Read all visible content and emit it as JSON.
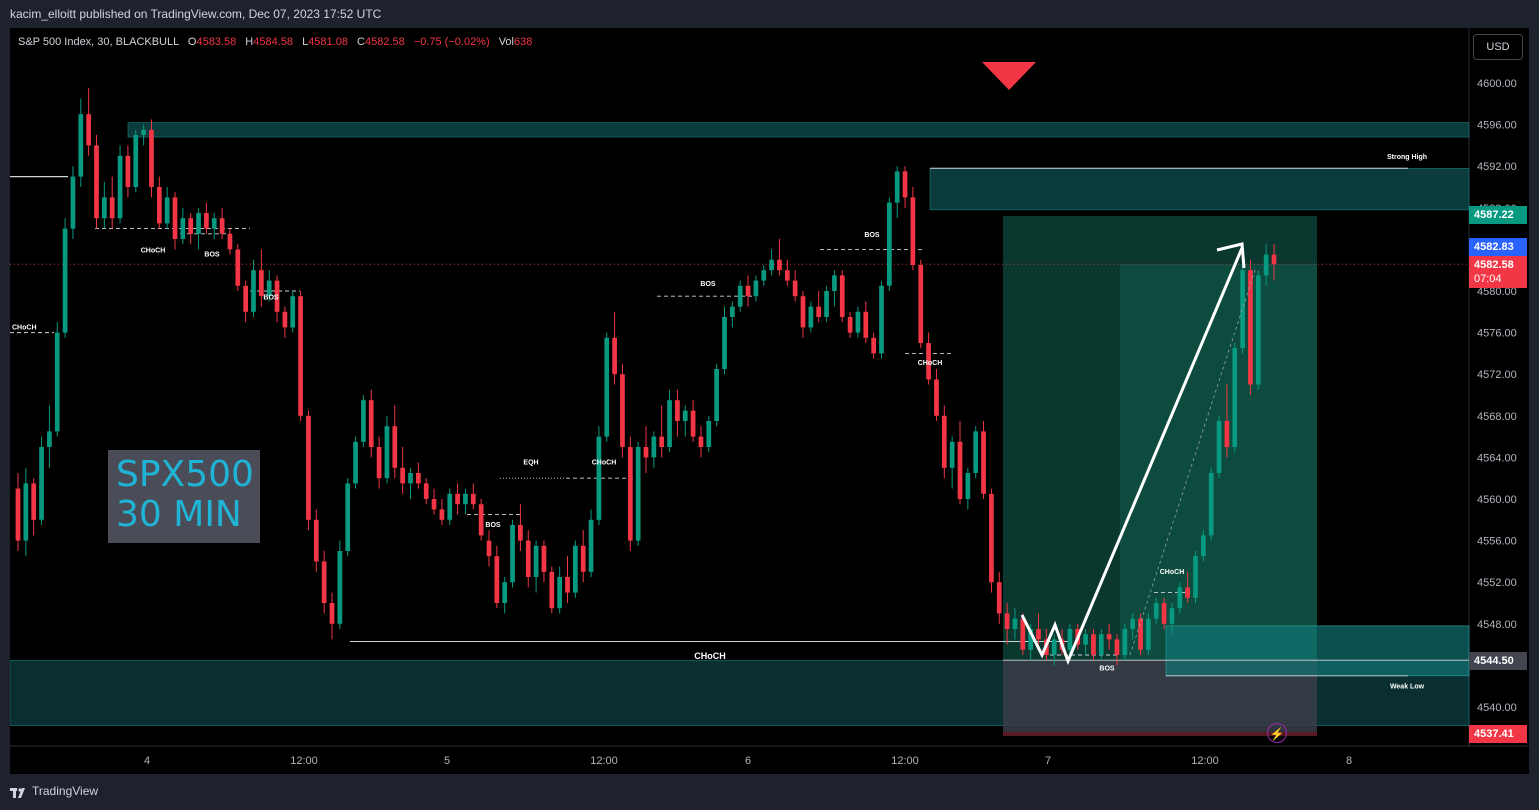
{
  "publisher_line": "kacim_elloitt published on TradingView.com, Dec 07, 2023 17:52 UTC",
  "legend": {
    "symbol": "S&P 500 Index, 30, BLACKBULL",
    "o_label": "O",
    "o_value": "4583.58",
    "h_label": "H",
    "h_value": "4584.58",
    "l_label": "L",
    "l_value": "4581.08",
    "c_label": "C",
    "c_value": "4582.58",
    "change": "−0.75 (−0.02%)",
    "vol_label": "Vol",
    "vol_value": "638"
  },
  "currency_button": "USD",
  "watermark": {
    "line1": "SPX500",
    "line2": "30 MIN"
  },
  "price_axis": {
    "ticks": [
      "4600.00",
      "4596.00",
      "4592.00",
      "4588.00",
      "4584.00",
      "4580.00",
      "4576.00",
      "4572.00",
      "4568.00",
      "4564.00",
      "4560.00",
      "4556.00",
      "4552.00",
      "4548.00",
      "4544.00",
      "4540.00"
    ],
    "range": [
      4536,
      4601
    ]
  },
  "price_badges": {
    "target": "4587.22",
    "high_marker": "4582.83",
    "last": "4582.58",
    "countdown": "07:04",
    "entry": "4544.50",
    "stop": "4537.41"
  },
  "time_axis": [
    "4",
    "12:00",
    "5",
    "12:00",
    "6",
    "12:00",
    "7",
    "12:00",
    "8"
  ],
  "annotations": {
    "choch": "CHoCH",
    "bos": "BOS",
    "eqh": "EQH",
    "strong_high": "Strong High",
    "weak_low": "Weak Low"
  },
  "footer_brand": "TradingView",
  "colors": {
    "up": "#089981",
    "down": "#f23645",
    "zone": "#0f4f52",
    "target_badge": "#089981",
    "high_badge": "#2962ff",
    "last_badge": "#f23645"
  },
  "chart_data": {
    "type": "candlestick",
    "symbol": "S&P 500 Index",
    "interval": "30",
    "ylim": [
      4536,
      4601
    ],
    "last_price": 4582.58,
    "zones": [
      {
        "label": "",
        "from": 4594.8,
        "to": 4596.2
      },
      {
        "label": "Strong High",
        "from": 4587.8,
        "to": 4591.8
      },
      {
        "label": "",
        "from": 4538.2,
        "to": 4544.5
      },
      {
        "label": "Weak Low",
        "from": 4543.0,
        "to": 4547.8
      }
    ],
    "position": {
      "side": "long",
      "entry": 4544.5,
      "target": 4587.22,
      "stop": 4537.41
    },
    "candles": [
      [
        4561.0,
        4562.5,
        4555.0,
        4556.0
      ],
      [
        4556.0,
        4563.0,
        4554.5,
        4561.5
      ],
      [
        4561.5,
        4562.0,
        4556.5,
        4558.0
      ],
      [
        4558.0,
        4566.0,
        4557.5,
        4565.0
      ],
      [
        4565.0,
        4569.0,
        4563.0,
        4566.5
      ],
      [
        4566.5,
        4577.0,
        4566.0,
        4576.0
      ],
      [
        4576.0,
        4587.0,
        4575.5,
        4586.0
      ],
      [
        4586.0,
        4592.0,
        4585.0,
        4591.0
      ],
      [
        4591.0,
        4598.5,
        4590.0,
        4597.0
      ],
      [
        4597.0,
        4599.5,
        4593.0,
        4594.0
      ],
      [
        4594.0,
        4595.0,
        4586.0,
        4587.0
      ],
      [
        4587.0,
        4590.5,
        4586.0,
        4589.0
      ],
      [
        4589.0,
        4591.0,
        4586.0,
        4587.0
      ],
      [
        4587.0,
        4594.0,
        4586.5,
        4593.0
      ],
      [
        4593.0,
        4594.0,
        4589.0,
        4590.0
      ],
      [
        4590.0,
        4595.5,
        4589.5,
        4595.0
      ],
      [
        4595.0,
        4596.0,
        4594.0,
        4595.5
      ],
      [
        4595.5,
        4596.5,
        4589.0,
        4590.0
      ],
      [
        4590.0,
        4591.0,
        4586.0,
        4586.5
      ],
      [
        4586.5,
        4590.0,
        4586.0,
        4589.0
      ],
      [
        4589.0,
        4589.5,
        4584.0,
        4585.0
      ],
      [
        4585.0,
        4588.0,
        4584.5,
        4587.0
      ],
      [
        4587.0,
        4587.5,
        4584.5,
        4585.5
      ],
      [
        4585.5,
        4588.0,
        4584.0,
        4587.5
      ],
      [
        4587.5,
        4588.5,
        4585.5,
        4586.0
      ],
      [
        4586.0,
        4587.5,
        4585.0,
        4587.0
      ],
      [
        4587.0,
        4588.0,
        4585.0,
        4585.5
      ],
      [
        4585.5,
        4586.0,
        4583.5,
        4584.0
      ],
      [
        4584.0,
        4584.5,
        4580.0,
        4580.5
      ],
      [
        4580.5,
        4581.0,
        4577.0,
        4578.0
      ],
      [
        4578.0,
        4583.0,
        4577.5,
        4582.0
      ],
      [
        4582.0,
        4584.0,
        4578.5,
        4579.5
      ],
      [
        4579.5,
        4582.0,
        4579.0,
        4581.0
      ],
      [
        4581.0,
        4581.5,
        4577.0,
        4578.0
      ],
      [
        4578.0,
        4578.5,
        4575.5,
        4576.5
      ],
      [
        4576.5,
        4580.0,
        4576.0,
        4579.5
      ],
      [
        4579.5,
        4580.0,
        4567.5,
        4568.0
      ],
      [
        4568.0,
        4568.5,
        4557.0,
        4558.0
      ],
      [
        4558.0,
        4559.0,
        4553.0,
        4554.0
      ],
      [
        4554.0,
        4555.0,
        4549.0,
        4550.0
      ],
      [
        4550.0,
        4551.0,
        4546.5,
        4548.0
      ],
      [
        4548.0,
        4556.0,
        4547.5,
        4555.0
      ],
      [
        4555.0,
        4562.0,
        4554.5,
        4561.5
      ],
      [
        4561.5,
        4566.0,
        4561.0,
        4565.5
      ],
      [
        4565.5,
        4570.0,
        4565.0,
        4569.5
      ],
      [
        4569.5,
        4570.5,
        4564.0,
        4565.0
      ],
      [
        4565.0,
        4566.0,
        4561.0,
        4562.0
      ],
      [
        4562.0,
        4568.0,
        4561.5,
        4567.0
      ],
      [
        4567.0,
        4569.0,
        4562.0,
        4563.0
      ],
      [
        4563.0,
        4565.0,
        4560.5,
        4561.5
      ],
      [
        4561.5,
        4563.0,
        4560.0,
        4562.5
      ],
      [
        4562.5,
        4563.5,
        4561.0,
        4561.5
      ],
      [
        4561.5,
        4562.0,
        4559.5,
        4560.0
      ],
      [
        4560.0,
        4561.0,
        4558.5,
        4559.0
      ],
      [
        4559.0,
        4560.0,
        4557.5,
        4558.0
      ],
      [
        4558.0,
        4561.0,
        4557.5,
        4560.5
      ],
      [
        4560.5,
        4561.5,
        4558.5,
        4559.5
      ],
      [
        4559.5,
        4561.0,
        4558.5,
        4560.5
      ],
      [
        4560.5,
        4561.5,
        4559.0,
        4559.5
      ],
      [
        4559.5,
        4560.0,
        4556.0,
        4556.5
      ],
      [
        4556.0,
        4557.0,
        4553.5,
        4554.5
      ],
      [
        4554.5,
        4555.5,
        4549.5,
        4550.0
      ],
      [
        4550.0,
        4552.5,
        4549.0,
        4552.0
      ],
      [
        4552.0,
        4558.0,
        4551.5,
        4557.5
      ],
      [
        4557.5,
        4559.5,
        4555.0,
        4556.0
      ],
      [
        4556.0,
        4557.0,
        4551.5,
        4552.5
      ],
      [
        4552.5,
        4556.0,
        4551.0,
        4555.5
      ],
      [
        4555.5,
        4556.0,
        4552.0,
        4553.0
      ],
      [
        4553.0,
        4553.5,
        4549.0,
        4549.5
      ],
      [
        4549.5,
        4553.5,
        4549.0,
        4552.5
      ],
      [
        4552.5,
        4554.5,
        4550.0,
        4551.0
      ],
      [
        4551.0,
        4556.0,
        4550.5,
        4555.5
      ],
      [
        4555.5,
        4557.0,
        4552.0,
        4553.0
      ],
      [
        4553.0,
        4559.0,
        4552.5,
        4558.0
      ],
      [
        4558.0,
        4567.0,
        4557.5,
        4566.0
      ],
      [
        4566.0,
        4576.0,
        4565.5,
        4575.5
      ],
      [
        4575.5,
        4578.0,
        4571.0,
        4572.0
      ],
      [
        4572.0,
        4573.0,
        4564.0,
        4565.0
      ],
      [
        4565.0,
        4566.0,
        4555.0,
        4556.0
      ],
      [
        4556.0,
        4565.5,
        4555.5,
        4565.0
      ],
      [
        4565.0,
        4567.0,
        4562.5,
        4564.0
      ],
      [
        4564.0,
        4566.5,
        4563.0,
        4566.0
      ],
      [
        4566.0,
        4569.0,
        4564.0,
        4565.0
      ],
      [
        4565.0,
        4570.5,
        4564.5,
        4569.5
      ],
      [
        4569.5,
        4570.5,
        4566.0,
        4567.5
      ],
      [
        4567.5,
        4569.0,
        4566.0,
        4568.5
      ],
      [
        4568.5,
        4569.5,
        4565.5,
        4566.0
      ],
      [
        4566.0,
        4567.0,
        4564.0,
        4565.0
      ],
      [
        4565.0,
        4568.0,
        4564.5,
        4567.5
      ],
      [
        4567.5,
        4573.0,
        4567.0,
        4572.5
      ],
      [
        4572.5,
        4578.5,
        4572.0,
        4577.5
      ],
      [
        4577.5,
        4579.0,
        4576.5,
        4578.5
      ],
      [
        4578.5,
        4581.0,
        4578.0,
        4580.5
      ],
      [
        4580.5,
        4581.5,
        4578.5,
        4579.5
      ],
      [
        4579.5,
        4581.5,
        4579.0,
        4581.0
      ],
      [
        4581.0,
        4582.5,
        4580.5,
        4582.0
      ],
      [
        4582.0,
        4584.0,
        4581.5,
        4583.0
      ],
      [
        4583.0,
        4585.0,
        4581.5,
        4582.0
      ],
      [
        4582.0,
        4583.0,
        4580.5,
        4581.0
      ],
      [
        4581.0,
        4582.0,
        4579.0,
        4579.5
      ],
      [
        4579.5,
        4580.0,
        4575.5,
        4576.5
      ],
      [
        4576.5,
        4579.0,
        4576.0,
        4578.5
      ],
      [
        4578.5,
        4580.0,
        4577.0,
        4577.5
      ],
      [
        4577.5,
        4580.5,
        4577.0,
        4580.0
      ],
      [
        4580.0,
        4582.0,
        4578.5,
        4581.5
      ],
      [
        4581.5,
        4582.0,
        4577.0,
        4577.5
      ],
      [
        4577.5,
        4578.0,
        4575.5,
        4576.0
      ],
      [
        4576.0,
        4578.5,
        4575.5,
        4578.0
      ],
      [
        4578.0,
        4579.0,
        4575.0,
        4575.5
      ],
      [
        4575.5,
        4576.0,
        4573.5,
        4574.0
      ],
      [
        4574.0,
        4581.0,
        4573.5,
        4580.5
      ],
      [
        4580.5,
        4589.0,
        4580.0,
        4588.5
      ],
      [
        4588.5,
        4592.0,
        4587.0,
        4591.5
      ],
      [
        4591.5,
        4592.0,
        4588.0,
        4589.0
      ],
      [
        4589.0,
        4590.0,
        4582.0,
        4582.5
      ],
      [
        4582.5,
        4583.0,
        4574.5,
        4575.0
      ],
      [
        4575.0,
        4576.0,
        4571.0,
        4571.5
      ],
      [
        4571.5,
        4572.5,
        4567.5,
        4568.0
      ],
      [
        4568.0,
        4569.0,
        4562.0,
        4563.0
      ],
      [
        4563.0,
        4566.0,
        4561.0,
        4565.5
      ],
      [
        4565.5,
        4567.5,
        4559.5,
        4560.0
      ],
      [
        4560.0,
        4563.0,
        4559.0,
        4562.5
      ],
      [
        4562.5,
        4567.0,
        4562.0,
        4566.5
      ],
      [
        4566.5,
        4567.5,
        4560.0,
        4560.5
      ],
      [
        4560.5,
        4561.0,
        4551.0,
        4552.0
      ],
      [
        4552.0,
        4553.0,
        4548.0,
        4549.0
      ],
      [
        4549.0,
        4550.0,
        4546.0,
        4547.5
      ],
      [
        4547.5,
        4549.5,
        4546.5,
        4548.5
      ],
      [
        4548.5,
        4549.0,
        4545.0,
        4545.5
      ],
      [
        4545.5,
        4548.0,
        4544.5,
        4547.5
      ],
      [
        4547.5,
        4549.0,
        4546.0,
        4546.5
      ],
      [
        4546.5,
        4547.5,
        4544.5,
        4545.0
      ],
      [
        4545.0,
        4547.0,
        4544.0,
        4546.5
      ],
      [
        4546.5,
        4547.5,
        4545.0,
        4545.5
      ],
      [
        4545.5,
        4548.0,
        4545.0,
        4547.5
      ],
      [
        4547.5,
        4548.0,
        4545.5,
        4546.0
      ],
      [
        4546.0,
        4547.5,
        4545.0,
        4547.0
      ],
      [
        4547.0,
        4547.5,
        4544.5,
        4545.0
      ],
      [
        4545.0,
        4547.5,
        4544.5,
        4547.0
      ],
      [
        4547.0,
        4548.0,
        4545.5,
        4546.5
      ],
      [
        4546.5,
        4547.0,
        4544.0,
        4545.0
      ],
      [
        4545.0,
        4548.0,
        4544.5,
        4547.5
      ],
      [
        4547.5,
        4549.0,
        4546.5,
        4548.5
      ],
      [
        4548.5,
        4549.0,
        4545.0,
        4545.5
      ],
      [
        4545.5,
        4549.0,
        4545.0,
        4548.5
      ],
      [
        4548.5,
        4550.5,
        4548.0,
        4550.0
      ],
      [
        4550.0,
        4550.5,
        4547.5,
        4548.0
      ],
      [
        4548.0,
        4550.0,
        4547.0,
        4549.5
      ],
      [
        4549.5,
        4552.0,
        4549.0,
        4551.5
      ],
      [
        4551.5,
        4553.0,
        4550.0,
        4550.5
      ],
      [
        4550.5,
        4555.0,
        4550.0,
        4554.5
      ],
      [
        4554.5,
        4557.0,
        4554.0,
        4556.5
      ],
      [
        4556.5,
        4563.0,
        4556.0,
        4562.5
      ],
      [
        4562.5,
        4568.0,
        4562.0,
        4567.5
      ],
      [
        4567.5,
        4571.0,
        4564.0,
        4565.0
      ],
      [
        4565.0,
        4575.0,
        4564.5,
        4574.5
      ],
      [
        4574.5,
        4583.0,
        4574.0,
        4582.0
      ],
      [
        4582.0,
        4583.0,
        4570.0,
        4571.0
      ],
      [
        4571.0,
        4582.0,
        4570.5,
        4581.5
      ],
      [
        4581.5,
        4584.5,
        4580.5,
        4583.5
      ],
      [
        4583.5,
        4584.5,
        4581.0,
        4582.58
      ]
    ]
  }
}
